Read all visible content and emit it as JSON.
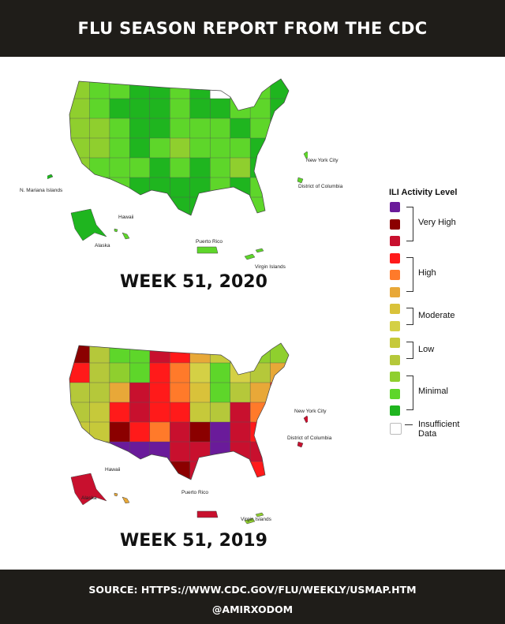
{
  "header": {
    "title": "FLU SEASON REPORT FROM THE CDC"
  },
  "maps": [
    {
      "week_label": "WEEK 51,  2020",
      "labels": {
        "nyc": "New York City",
        "dc": "District of Columbia",
        "nmi": "N. Mariana Islands",
        "hawaii": "Hawaii",
        "alaska": "Alaska",
        "pr": "Puerto Rico",
        "vi": "Virgin Islands"
      }
    },
    {
      "week_label": "WEEK 51,  2019",
      "labels": {
        "nyc": "New York City",
        "dc": "District of Columbia",
        "hawaii": "Hawaii",
        "alaska": "Alaska",
        "pr": "Puerto Rico",
        "vi": "Virgin Islands"
      }
    }
  ],
  "legend": {
    "title": "ILI Activity Level",
    "colors": [
      "#6a1b9a",
      "#8b0000",
      "#c8102e",
      "#ff1a1a",
      "#ff7a2a",
      "#e8a838",
      "#d9c23a",
      "#d4d045",
      "#c6c93a",
      "#b5c83a",
      "#8fcf2e",
      "#5ed62a",
      "#1fb51f",
      "#ffffff"
    ],
    "groups": [
      "Very High",
      "High",
      "Moderate",
      "Low",
      "Minimal"
    ],
    "insufficient": "Insufficient Data"
  },
  "footer": {
    "source": "SOURCE: HTTPS://WWW.CDC.GOV/FLU/WEEKLY/USMAP.HTM",
    "handle": "@AMIRXODOM"
  }
}
